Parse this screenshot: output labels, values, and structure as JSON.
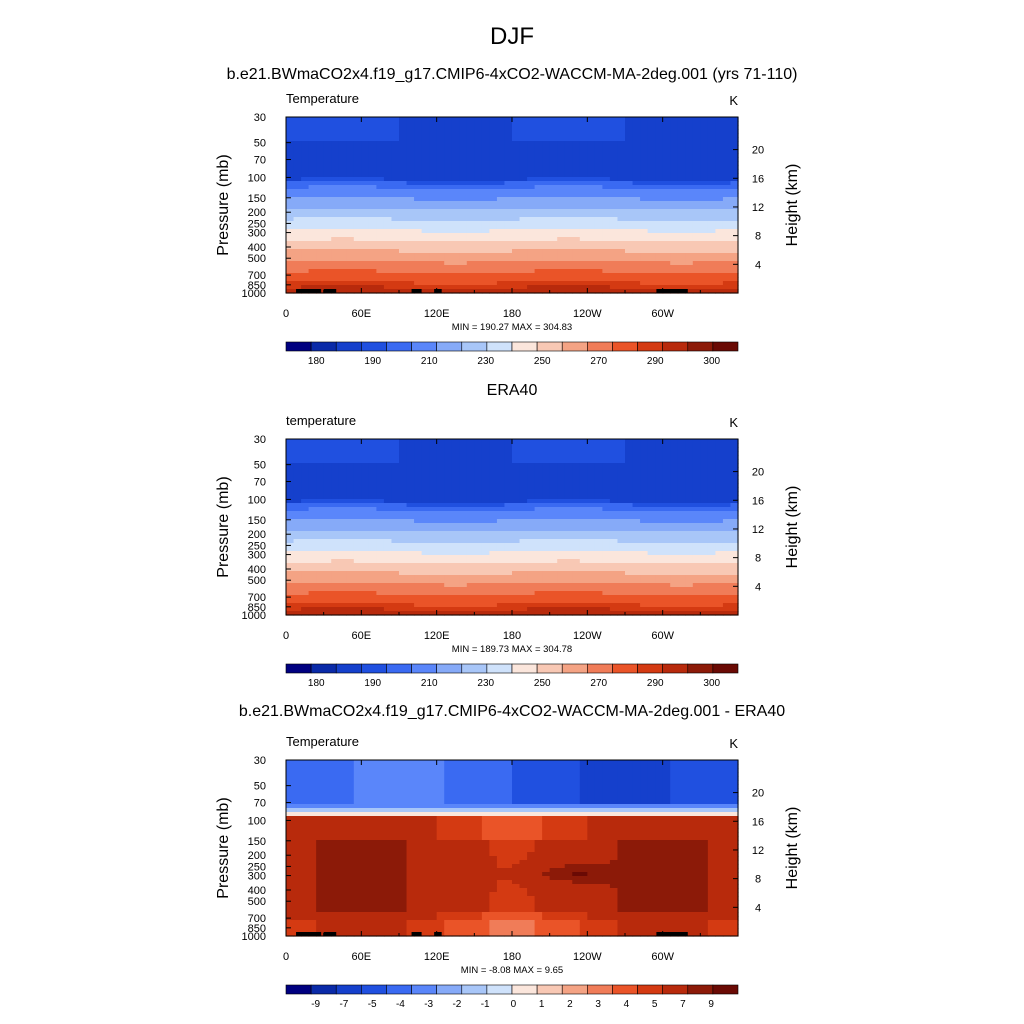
{
  "figure": {
    "title": "DJF",
    "subtitle": "b.e21.BWmaCO2x4.f19_g17.CMIP6-4xCO2-WACCM-MA-2deg.001 (yrs 71-110)"
  },
  "chart_data": [
    {
      "type": "heatmap",
      "title": "",
      "left_label": "Temperature",
      "units": "K",
      "xlabel": "",
      "ylabel": "Pressure (mb)",
      "y2label": "Height (km)",
      "x_ticks": [
        "0",
        "60E",
        "120E",
        "180",
        "120W",
        "60W"
      ],
      "x_range": [
        0,
        360
      ],
      "y_ticks": [
        "30",
        "50",
        "70",
        "100",
        "150",
        "200",
        "250",
        "300",
        "400",
        "500",
        "700",
        "850",
        "1000"
      ],
      "y_range": [
        30,
        1000
      ],
      "y2_ticks": [
        "4",
        "8",
        "12",
        "16",
        "20"
      ],
      "stats_text": "MIN = 190.27  MAX = 304.83",
      "min": 190.27,
      "max": 304.83,
      "field": "abs",
      "colorbar_labels": [
        "180",
        "190",
        "210",
        "230",
        "250",
        "270",
        "290",
        "300"
      ]
    },
    {
      "type": "heatmap",
      "title": "ERA40",
      "left_label": "temperature",
      "units": "K",
      "xlabel": "",
      "ylabel": "Pressure (mb)",
      "y2label": "Height (km)",
      "x_ticks": [
        "0",
        "60E",
        "120E",
        "180",
        "120W",
        "60W"
      ],
      "x_range": [
        0,
        360
      ],
      "y_ticks": [
        "30",
        "50",
        "70",
        "100",
        "150",
        "200",
        "250",
        "300",
        "400",
        "500",
        "700",
        "850",
        "1000"
      ],
      "y_range": [
        30,
        1000
      ],
      "y2_ticks": [
        "4",
        "8",
        "12",
        "16",
        "20"
      ],
      "stats_text": "MIN = 189.73  MAX = 304.78",
      "min": 189.73,
      "max": 304.78,
      "field": "abs",
      "colorbar_labels": [
        "180",
        "190",
        "210",
        "230",
        "250",
        "270",
        "290",
        "300"
      ]
    },
    {
      "type": "heatmap",
      "title": "b.e21.BWmaCO2x4.f19_g17.CMIP6-4xCO2-WACCM-MA-2deg.001 - ERA40",
      "left_label": "Temperature",
      "units": "K",
      "xlabel": "",
      "ylabel": "Pressure (mb)",
      "y2label": "Height (km)",
      "x_ticks": [
        "0",
        "60E",
        "120E",
        "180",
        "120W",
        "60W"
      ],
      "x_range": [
        0,
        360
      ],
      "y_ticks": [
        "30",
        "50",
        "70",
        "100",
        "150",
        "200",
        "250",
        "300",
        "400",
        "500",
        "700",
        "850",
        "1000"
      ],
      "y_range": [
        30,
        1000
      ],
      "y2_ticks": [
        "4",
        "8",
        "12",
        "16",
        "20"
      ],
      "stats_text": "MIN =  -8.08  MAX =   9.65",
      "min": -8.08,
      "max": 9.65,
      "field": "diff",
      "colorbar_labels": [
        "-9",
        "-7",
        "-5",
        "-4",
        "-3",
        "-2",
        "-1",
        "0",
        "1",
        "2",
        "3",
        "4",
        "5",
        "7",
        "9"
      ]
    }
  ],
  "colormaps": {
    "abs": [
      "#000080",
      "#0a2aa8",
      "#1540cc",
      "#2050e0",
      "#3a6af2",
      "#5a86fa",
      "#86aaf8",
      "#a8c6f8",
      "#cfe2fb",
      "#fbe6dc",
      "#f8c8b4",
      "#f4a384",
      "#f07c58",
      "#ea5428",
      "#d43a12",
      "#b82a0c",
      "#8c1a08",
      "#6a0a04"
    ],
    "diff": [
      "#000080",
      "#0a2aa8",
      "#1540cc",
      "#2050e0",
      "#3a6af2",
      "#5a86fa",
      "#86aaf8",
      "#a8c6f8",
      "#cfe2fb",
      "#fbe6dc",
      "#f8c8b4",
      "#f4a384",
      "#f07c58",
      "#ea5428",
      "#d43a12",
      "#b82a0c",
      "#8c1a08",
      "#6a0a04"
    ]
  }
}
